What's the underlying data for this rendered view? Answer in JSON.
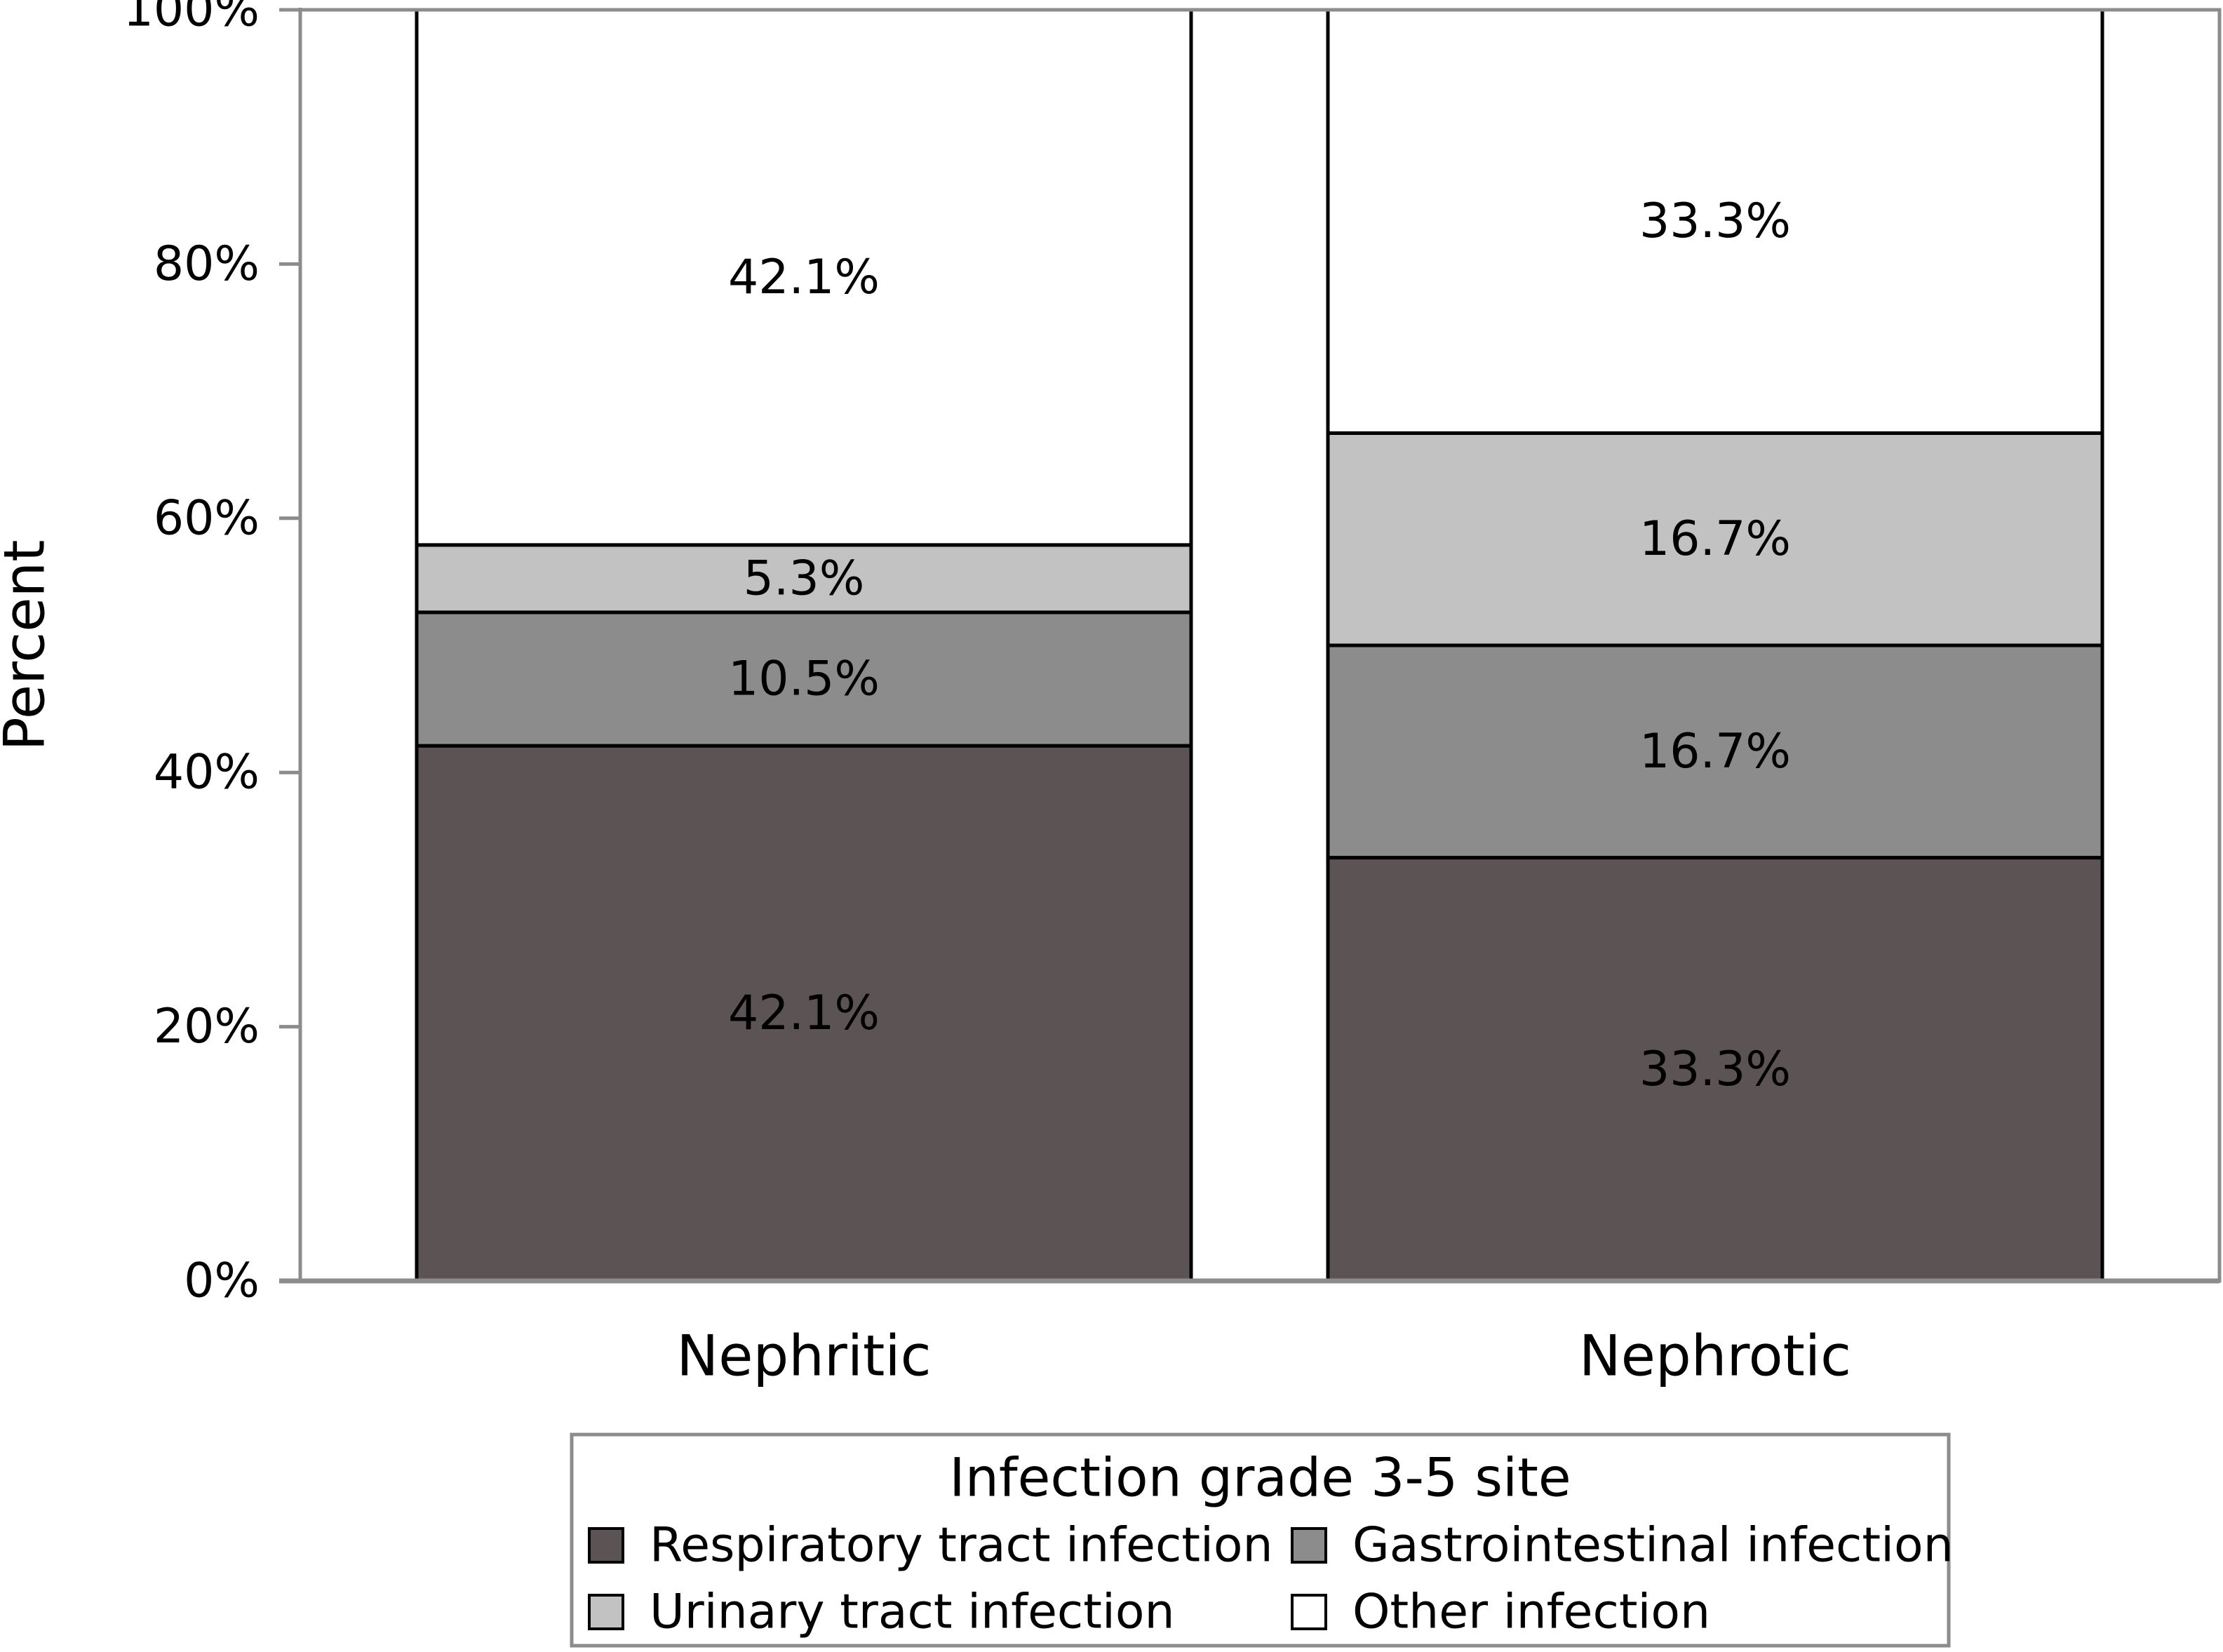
{
  "chart_data": {
    "type": "bar",
    "stacked": true,
    "ylabel": "Percent",
    "xlabel": "",
    "ylim": [
      0,
      100
    ],
    "yticks": [
      0,
      20,
      40,
      60,
      80,
      100
    ],
    "ytick_labels": [
      "0%",
      "20%",
      "40%",
      "60%",
      "80%",
      "100%"
    ],
    "categories": [
      "Nephritic",
      "Nephrotic"
    ],
    "series": [
      {
        "name": "Respiratory tract infection",
        "values": [
          42.1,
          33.3
        ],
        "labels": [
          "42.1%",
          "33.3%"
        ],
        "color": "#5b5354"
      },
      {
        "name": "Gastrointestinal infection",
        "values": [
          10.5,
          16.7
        ],
        "labels": [
          "10.5%",
          "16.7%"
        ],
        "color": "#8c8c8c"
      },
      {
        "name": "Urinary tract infection",
        "values": [
          5.3,
          16.7
        ],
        "labels": [
          "5.3%",
          "16.7%"
        ],
        "color": "#c2c2c2"
      },
      {
        "name": "Other infection",
        "values": [
          42.1,
          33.3
        ],
        "labels": [
          "42.1%",
          "33.3%"
        ],
        "color": "#ffffff"
      }
    ],
    "legend": {
      "title": "Infection grade 3-5 site",
      "placement": "bottom-center"
    },
    "frame_color": "#8c8c8c"
  }
}
